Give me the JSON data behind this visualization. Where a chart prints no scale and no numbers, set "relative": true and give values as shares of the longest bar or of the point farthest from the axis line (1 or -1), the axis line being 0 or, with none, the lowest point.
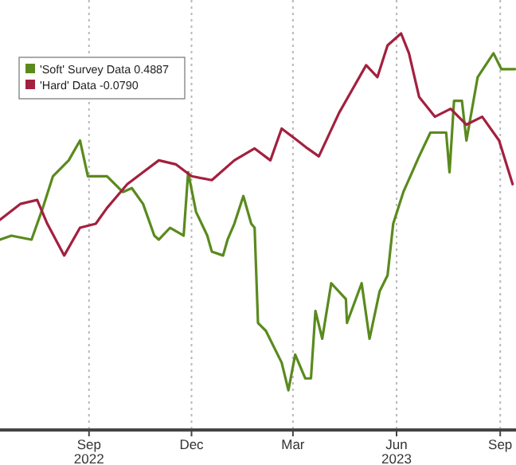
{
  "chart_data": {
    "type": "line",
    "relative": true,
    "xlim": [
      "2022-06-14",
      "2023-09-15"
    ],
    "xticks": [
      {
        "value": "2022-09-01",
        "label": "Sep\n2022"
      },
      {
        "value": "2022-12-01",
        "label": "Dec"
      },
      {
        "value": "2023-03-01",
        "label": "Mar"
      },
      {
        "value": "2023-06-01",
        "label": "Jun\n2023"
      },
      {
        "value": "2023-09-01",
        "label": "Sep"
      }
    ],
    "grid": "x",
    "legend": "top left",
    "series": [
      {
        "name": "'Soft' Survey Data 0.4887",
        "color": "#5a8a1e",
        "x": [
          "2022-06-14",
          "2022-06-24",
          "2022-07-12",
          "2022-07-17",
          "2022-07-22",
          "2022-07-31",
          "2022-08-14",
          "2022-08-24",
          "2022-08-31",
          "2022-09-17",
          "2022-10-01",
          "2022-10-09",
          "2022-10-19",
          "2022-10-29",
          "2022-11-02",
          "2022-11-12",
          "2022-11-24",
          "2022-11-28",
          "2022-12-05",
          "2022-12-15",
          "2022-12-19",
          "2022-12-29",
          "2023-01-02",
          "2023-01-08",
          "2023-01-16",
          "2023-01-23",
          "2023-01-26",
          "2023-01-29",
          "2023-02-05",
          "2023-02-19",
          "2023-02-25",
          "2023-03-03",
          "2023-03-12",
          "2023-03-17",
          "2023-03-21",
          "2023-03-27",
          "2023-04-04",
          "2023-04-17",
          "2023-04-18",
          "2023-05-01",
          "2023-05-08",
          "2023-05-17",
          "2023-05-24",
          "2023-05-29",
          "2023-06-07",
          "2023-06-21",
          "2023-07-01",
          "2023-07-15",
          "2023-07-18",
          "2023-07-22",
          "2023-07-29",
          "2023-08-02",
          "2023-08-12",
          "2023-08-26",
          "2023-09-02",
          "2023-09-14"
        ],
        "values": [
          0.48,
          0.49,
          0.48,
          0.52,
          0.56,
          0.64,
          0.68,
          0.73,
          0.64,
          0.64,
          0.6,
          0.61,
          0.57,
          0.49,
          0.48,
          0.51,
          0.49,
          0.65,
          0.55,
          0.49,
          0.45,
          0.44,
          0.48,
          0.52,
          0.59,
          0.52,
          0.51,
          0.27,
          0.25,
          0.17,
          0.1,
          0.19,
          0.13,
          0.13,
          0.3,
          0.23,
          0.37,
          0.33,
          0.27,
          0.37,
          0.23,
          0.35,
          0.39,
          0.52,
          0.6,
          0.69,
          0.75,
          0.75,
          0.65,
          0.83,
          0.83,
          0.73,
          0.89,
          0.95,
          0.91,
          0.91
        ]
      },
      {
        "name": "'Hard' Data -0.0790",
        "color": "#a3203f",
        "x": [
          "2022-06-14",
          "2022-07-02",
          "2022-07-17",
          "2022-07-26",
          "2022-08-10",
          "2022-08-24",
          "2022-09-07",
          "2022-09-17",
          "2022-10-05",
          "2022-10-19",
          "2022-11-02",
          "2022-11-17",
          "2022-12-01",
          "2022-12-19",
          "2023-01-08",
          "2023-01-26",
          "2023-02-09",
          "2023-02-19",
          "2023-03-05",
          "2023-03-14",
          "2023-03-24",
          "2023-04-11",
          "2023-04-21",
          "2023-05-05",
          "2023-05-15",
          "2023-05-24",
          "2023-06-05",
          "2023-06-12",
          "2023-06-21",
          "2023-07-05",
          "2023-07-19",
          "2023-08-02",
          "2023-08-16",
          "2023-08-31",
          "2023-09-12"
        ],
        "values": [
          0.53,
          0.57,
          0.58,
          0.52,
          0.44,
          0.51,
          0.52,
          0.56,
          0.62,
          0.65,
          0.68,
          0.67,
          0.64,
          0.63,
          0.68,
          0.71,
          0.68,
          0.76,
          0.73,
          0.71,
          0.69,
          0.8,
          0.85,
          0.92,
          0.89,
          0.97,
          1,
          0.95,
          0.84,
          0.79,
          0.81,
          0.77,
          0.79,
          0.73,
          0.62
        ]
      }
    ]
  }
}
